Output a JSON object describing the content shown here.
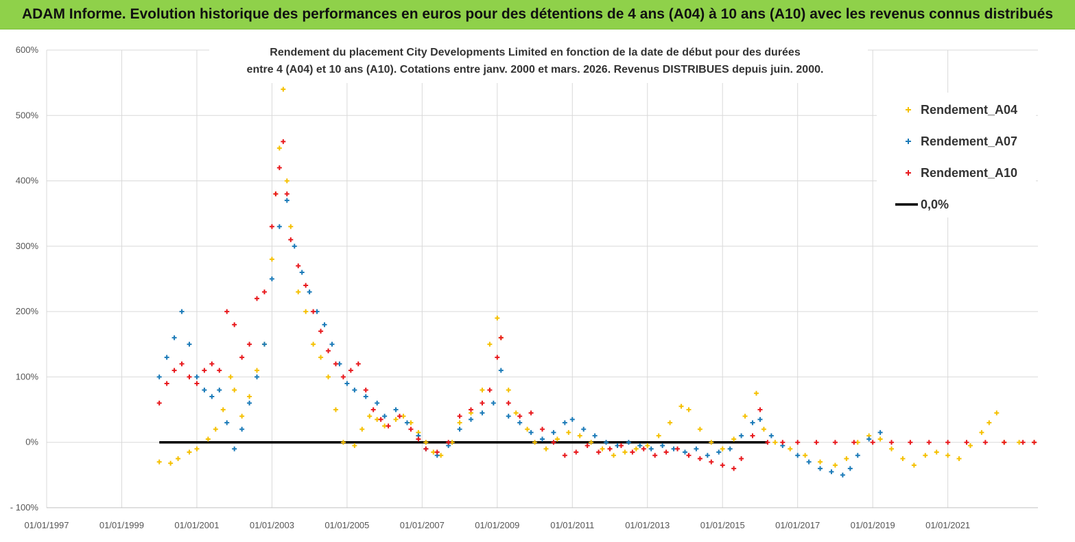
{
  "banner": {
    "title": "ADAM Informe. Evolution historique des performances en euros pour des détentions de 4 ans (A04) à 10 ans (A10) avec les revenus connus distribués"
  },
  "chart_data": {
    "type": "scatter",
    "title_lines": [
      "Rendement du placement City Developments Limited en fonction de la date de début pour des durées",
      "entre 4 (A04) et 10 ans (A10).  Cotations entre janv. 2000 et mars. 2026.  Revenus DISTRIBUES depuis juin. 2000."
    ],
    "x_ticks": [
      "01/01/1997",
      "01/01/1999",
      "01/01/2001",
      "01/01/2003",
      "01/01/2005",
      "01/01/2007",
      "01/01/2009",
      "01/01/2011",
      "01/01/2013",
      "01/01/2015",
      "01/01/2017",
      "01/01/2019",
      "01/01/2021"
    ],
    "x_tick_years": [
      1997,
      1999,
      2001,
      2003,
      2005,
      2007,
      2009,
      2011,
      2013,
      2015,
      2017,
      2019,
      2021
    ],
    "xlim": [
      1997,
      2023.4
    ],
    "y_ticks": [
      "- 100%",
      "0%",
      "100%",
      "200%",
      "300%",
      "400%",
      "500%",
      "600%"
    ],
    "y_tick_values": [
      -100,
      0,
      100,
      200,
      300,
      400,
      500,
      600
    ],
    "ylim": [
      -100,
      600
    ],
    "ylabel_unit": "%",
    "grid": true,
    "legend_position": "top-right",
    "series": [
      {
        "name": "Rendement_A04",
        "color": "#f5c000",
        "marker": "+",
        "points": [
          [
            2000.0,
            -30
          ],
          [
            2000.3,
            -32
          ],
          [
            2000.5,
            -25
          ],
          [
            2000.8,
            -15
          ],
          [
            2001.0,
            -10
          ],
          [
            2001.3,
            5
          ],
          [
            2001.5,
            20
          ],
          [
            2001.7,
            50
          ],
          [
            2001.9,
            100
          ],
          [
            2002.0,
            80
          ],
          [
            2002.2,
            40
          ],
          [
            2002.4,
            70
          ],
          [
            2002.6,
            110
          ],
          [
            2002.8,
            150
          ],
          [
            2003.0,
            280
          ],
          [
            2003.1,
            380
          ],
          [
            2003.2,
            450
          ],
          [
            2003.3,
            540
          ],
          [
            2003.4,
            400
          ],
          [
            2003.5,
            330
          ],
          [
            2003.7,
            230
          ],
          [
            2003.9,
            200
          ],
          [
            2004.1,
            150
          ],
          [
            2004.3,
            130
          ],
          [
            2004.5,
            100
          ],
          [
            2004.7,
            50
          ],
          [
            2004.9,
            0
          ],
          [
            2005.2,
            -5
          ],
          [
            2005.4,
            20
          ],
          [
            2005.6,
            40
          ],
          [
            2005.8,
            35
          ],
          [
            2006.0,
            25
          ],
          [
            2006.3,
            35
          ],
          [
            2006.5,
            40
          ],
          [
            2006.7,
            30
          ],
          [
            2006.9,
            15
          ],
          [
            2007.1,
            0
          ],
          [
            2007.3,
            -15
          ],
          [
            2007.5,
            -20
          ],
          [
            2007.8,
            0
          ],
          [
            2008.0,
            30
          ],
          [
            2008.3,
            45
          ],
          [
            2008.6,
            80
          ],
          [
            2008.8,
            150
          ],
          [
            2009.0,
            190
          ],
          [
            2009.1,
            160
          ],
          [
            2009.3,
            80
          ],
          [
            2009.5,
            45
          ],
          [
            2009.8,
            20
          ],
          [
            2010.0,
            0
          ],
          [
            2010.3,
            -10
          ],
          [
            2010.6,
            5
          ],
          [
            2010.9,
            15
          ],
          [
            2011.2,
            10
          ],
          [
            2011.5,
            0
          ],
          [
            2011.8,
            -10
          ],
          [
            2012.1,
            -20
          ],
          [
            2012.4,
            -15
          ],
          [
            2012.7,
            -10
          ],
          [
            2013.0,
            -5
          ],
          [
            2013.3,
            10
          ],
          [
            2013.6,
            30
          ],
          [
            2013.9,
            55
          ],
          [
            2014.1,
            50
          ],
          [
            2014.4,
            20
          ],
          [
            2014.7,
            0
          ],
          [
            2015.0,
            -10
          ],
          [
            2015.3,
            5
          ],
          [
            2015.6,
            40
          ],
          [
            2015.9,
            75
          ],
          [
            2016.1,
            20
          ],
          [
            2016.4,
            0
          ],
          [
            2016.8,
            -10
          ],
          [
            2017.2,
            -20
          ],
          [
            2017.6,
            -30
          ],
          [
            2018.0,
            -35
          ],
          [
            2018.3,
            -25
          ],
          [
            2018.6,
            0
          ],
          [
            2018.9,
            10
          ],
          [
            2019.2,
            5
          ],
          [
            2019.5,
            -10
          ],
          [
            2019.8,
            -25
          ],
          [
            2020.1,
            -35
          ],
          [
            2020.4,
            -20
          ],
          [
            2020.7,
            -15
          ],
          [
            2021.0,
            -20
          ],
          [
            2021.3,
            -25
          ],
          [
            2021.6,
            -5
          ],
          [
            2021.9,
            15
          ],
          [
            2022.1,
            30
          ],
          [
            2022.3,
            45
          ],
          [
            2022.5,
            0
          ],
          [
            2022.9,
            0
          ],
          [
            2023.3,
            0
          ]
        ]
      },
      {
        "name": "Rendement_A07",
        "color": "#1a7ab8",
        "marker": "+",
        "points": [
          [
            2000.0,
            100
          ],
          [
            2000.2,
            130
          ],
          [
            2000.4,
            160
          ],
          [
            2000.6,
            200
          ],
          [
            2000.8,
            150
          ],
          [
            2001.0,
            100
          ],
          [
            2001.2,
            80
          ],
          [
            2001.4,
            70
          ],
          [
            2001.6,
            80
          ],
          [
            2001.8,
            30
          ],
          [
            2002.0,
            -10
          ],
          [
            2002.2,
            20
          ],
          [
            2002.4,
            60
          ],
          [
            2002.6,
            100
          ],
          [
            2002.8,
            150
          ],
          [
            2003.0,
            250
          ],
          [
            2003.2,
            330
          ],
          [
            2003.4,
            370
          ],
          [
            2003.6,
            300
          ],
          [
            2003.8,
            260
          ],
          [
            2004.0,
            230
          ],
          [
            2004.2,
            200
          ],
          [
            2004.4,
            180
          ],
          [
            2004.6,
            150
          ],
          [
            2004.8,
            120
          ],
          [
            2005.0,
            90
          ],
          [
            2005.2,
            80
          ],
          [
            2005.5,
            70
          ],
          [
            2005.8,
            60
          ],
          [
            2006.0,
            40
          ],
          [
            2006.3,
            50
          ],
          [
            2006.6,
            30
          ],
          [
            2006.9,
            10
          ],
          [
            2007.1,
            -10
          ],
          [
            2007.4,
            -20
          ],
          [
            2007.7,
            -5
          ],
          [
            2008.0,
            20
          ],
          [
            2008.3,
            35
          ],
          [
            2008.6,
            45
          ],
          [
            2008.9,
            60
          ],
          [
            2009.1,
            110
          ],
          [
            2009.3,
            40
          ],
          [
            2009.6,
            30
          ],
          [
            2009.9,
            15
          ],
          [
            2010.2,
            5
          ],
          [
            2010.5,
            15
          ],
          [
            2010.8,
            30
          ],
          [
            2011.0,
            35
          ],
          [
            2011.3,
            20
          ],
          [
            2011.6,
            10
          ],
          [
            2011.9,
            0
          ],
          [
            2012.2,
            -5
          ],
          [
            2012.5,
            0
          ],
          [
            2012.8,
            -5
          ],
          [
            2013.1,
            -10
          ],
          [
            2013.4,
            -5
          ],
          [
            2013.7,
            -10
          ],
          [
            2014.0,
            -15
          ],
          [
            2014.3,
            -10
          ],
          [
            2014.6,
            -20
          ],
          [
            2014.9,
            -15
          ],
          [
            2015.2,
            -10
          ],
          [
            2015.5,
            10
          ],
          [
            2015.8,
            30
          ],
          [
            2016.0,
            35
          ],
          [
            2016.3,
            10
          ],
          [
            2016.6,
            -5
          ],
          [
            2017.0,
            -20
          ],
          [
            2017.3,
            -30
          ],
          [
            2017.6,
            -40
          ],
          [
            2017.9,
            -45
          ],
          [
            2018.2,
            -50
          ],
          [
            2018.4,
            -40
          ],
          [
            2018.6,
            -20
          ],
          [
            2018.9,
            5
          ],
          [
            2019.2,
            15
          ]
        ]
      },
      {
        "name": "Rendement_A10",
        "color": "#e8181c",
        "marker": "+",
        "points": [
          [
            2000.0,
            60
          ],
          [
            2000.2,
            90
          ],
          [
            2000.4,
            110
          ],
          [
            2000.6,
            120
          ],
          [
            2000.8,
            100
          ],
          [
            2001.0,
            90
          ],
          [
            2001.2,
            110
          ],
          [
            2001.4,
            120
          ],
          [
            2001.6,
            110
          ],
          [
            2001.8,
            200
          ],
          [
            2002.0,
            180
          ],
          [
            2002.2,
            130
          ],
          [
            2002.4,
            150
          ],
          [
            2002.6,
            220
          ],
          [
            2002.8,
            230
          ],
          [
            2003.0,
            330
          ],
          [
            2003.1,
            380
          ],
          [
            2003.2,
            420
          ],
          [
            2003.3,
            460
          ],
          [
            2003.4,
            380
          ],
          [
            2003.5,
            310
          ],
          [
            2003.7,
            270
          ],
          [
            2003.9,
            240
          ],
          [
            2004.1,
            200
          ],
          [
            2004.3,
            170
          ],
          [
            2004.5,
            140
          ],
          [
            2004.7,
            120
          ],
          [
            2004.9,
            100
          ],
          [
            2005.1,
            110
          ],
          [
            2005.3,
            120
          ],
          [
            2005.5,
            80
          ],
          [
            2005.7,
            50
          ],
          [
            2005.9,
            35
          ],
          [
            2006.1,
            25
          ],
          [
            2006.4,
            40
          ],
          [
            2006.7,
            20
          ],
          [
            2006.9,
            5
          ],
          [
            2007.1,
            -10
          ],
          [
            2007.4,
            -15
          ],
          [
            2007.7,
            0
          ],
          [
            2008.0,
            40
          ],
          [
            2008.3,
            50
          ],
          [
            2008.6,
            60
          ],
          [
            2008.8,
            80
          ],
          [
            2009.0,
            130
          ],
          [
            2009.1,
            160
          ],
          [
            2009.3,
            60
          ],
          [
            2009.6,
            40
          ],
          [
            2009.9,
            45
          ],
          [
            2010.2,
            20
          ],
          [
            2010.5,
            0
          ],
          [
            2010.8,
            -20
          ],
          [
            2011.1,
            -15
          ],
          [
            2011.4,
            -5
          ],
          [
            2011.7,
            -15
          ],
          [
            2012.0,
            -10
          ],
          [
            2012.3,
            -5
          ],
          [
            2012.6,
            -15
          ],
          [
            2012.9,
            -10
          ],
          [
            2013.2,
            -20
          ],
          [
            2013.5,
            -15
          ],
          [
            2013.8,
            -10
          ],
          [
            2014.1,
            -20
          ],
          [
            2014.4,
            -25
          ],
          [
            2014.7,
            -30
          ],
          [
            2015.0,
            -35
          ],
          [
            2015.3,
            -40
          ],
          [
            2015.5,
            -25
          ],
          [
            2015.8,
            10
          ],
          [
            2016.0,
            50
          ],
          [
            2016.2,
            0
          ],
          [
            2016.6,
            0
          ],
          [
            2017.0,
            0
          ],
          [
            2017.5,
            0
          ],
          [
            2018.0,
            0
          ],
          [
            2018.5,
            0
          ],
          [
            2019.0,
            0
          ],
          [
            2019.5,
            0
          ],
          [
            2020.0,
            0
          ],
          [
            2020.5,
            0
          ],
          [
            2021.0,
            0
          ],
          [
            2021.5,
            0
          ],
          [
            2022.0,
            0
          ],
          [
            2022.5,
            0
          ],
          [
            2023.0,
            0
          ],
          [
            2023.3,
            0
          ]
        ]
      },
      {
        "name": "0,0%",
        "color": "#000000",
        "marker": "line",
        "points": [
          [
            2000.0,
            0
          ],
          [
            2016.2,
            0
          ]
        ]
      }
    ]
  }
}
